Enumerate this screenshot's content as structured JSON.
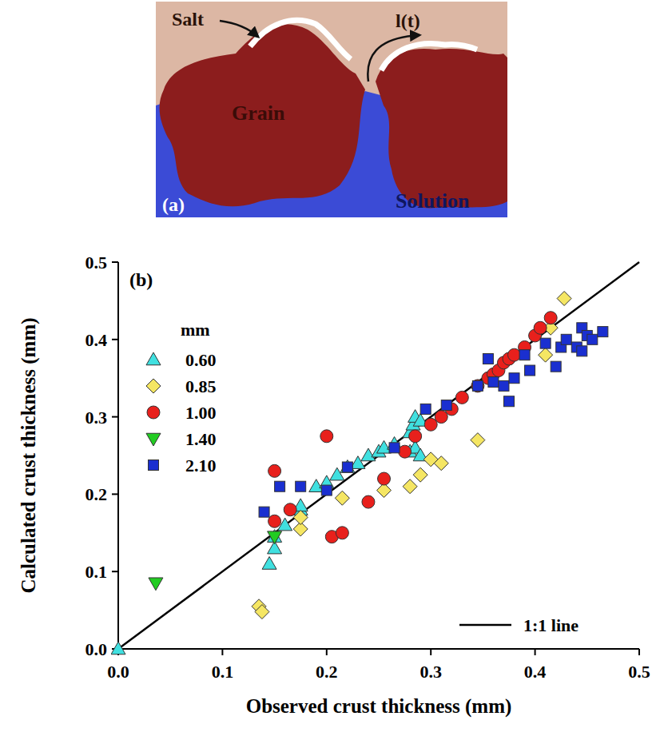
{
  "diagram": {
    "panel": "(a)",
    "labels": {
      "salt": "Salt",
      "length": "l(t)",
      "grain": "Grain",
      "solution": "Solution"
    }
  },
  "chart_data": {
    "type": "scatter",
    "panel": "(b)",
    "x_label": "Observed crust thickness (mm)",
    "y_label": "Calculated crust thickness (mm)",
    "xlim": [
      0,
      0.5
    ],
    "ylim": [
      0,
      0.5
    ],
    "xticks": [
      {
        "value": 0,
        "label": "0.0"
      },
      0.1,
      0.2,
      0.3,
      0.4,
      0.5
    ],
    "yticks": [
      {
        "value": 0,
        "label": "0.0"
      },
      0.1,
      0.2,
      0.3,
      0.4,
      0.5
    ],
    "grid": false,
    "legend": "upper left",
    "legend_title": "mm",
    "series": [
      {
        "name": "0.60",
        "color": "#40e0e0",
        "marker": "triangle-up",
        "x": [
          0,
          0.145,
          0.15,
          0.15,
          0.16,
          0.175,
          0.175,
          0.19,
          0.2,
          0.21,
          0.22,
          0.23,
          0.24,
          0.25,
          0.255,
          0.265,
          0.28,
          0.283,
          0.285,
          0.29,
          0.28,
          0.285,
          0.29
        ],
        "values": [
          0,
          0.11,
          0.13,
          0.145,
          0.16,
          0.18,
          0.185,
          0.21,
          0.215,
          0.225,
          0.235,
          0.24,
          0.25,
          0.255,
          0.26,
          0.265,
          0.28,
          0.29,
          0.3,
          0.295,
          0.255,
          0.26,
          0.25
        ]
      },
      {
        "name": "0.85",
        "color": "#f5e663",
        "marker": "diamond",
        "x": [
          0.135,
          0.138,
          0.175,
          0.175,
          0.215,
          0.255,
          0.28,
          0.29,
          0.3,
          0.31,
          0.345,
          0.41,
          0.415,
          0.428
        ],
        "values": [
          0.055,
          0.048,
          0.155,
          0.17,
          0.195,
          0.205,
          0.21,
          0.225,
          0.245,
          0.24,
          0.27,
          0.38,
          0.415,
          0.453
        ]
      },
      {
        "name": "1.00",
        "color": "#e8201c",
        "marker": "circle",
        "x": [
          0.15,
          0.15,
          0.165,
          0.2,
          0.205,
          0.215,
          0.24,
          0.255,
          0.275,
          0.285,
          0.3,
          0.31,
          0.32,
          0.33,
          0.345,
          0.355,
          0.36,
          0.365,
          0.37,
          0.375,
          0.38,
          0.39,
          0.4,
          0.405,
          0.415
        ],
        "values": [
          0.23,
          0.165,
          0.18,
          0.275,
          0.145,
          0.15,
          0.19,
          0.22,
          0.255,
          0.275,
          0.29,
          0.3,
          0.31,
          0.325,
          0.34,
          0.35,
          0.355,
          0.36,
          0.37,
          0.375,
          0.38,
          0.39,
          0.405,
          0.415,
          0.428
        ]
      },
      {
        "name": "1.40",
        "color": "#22cc22",
        "marker": "triangle-down",
        "x": [
          0.036,
          0.15
        ],
        "values": [
          0.085,
          0.145
        ]
      },
      {
        "name": "2.10",
        "color": "#1a2fd0",
        "marker": "square",
        "x": [
          0.14,
          0.155,
          0.175,
          0.2,
          0.22,
          0.265,
          0.295,
          0.315,
          0.345,
          0.355,
          0.36,
          0.37,
          0.375,
          0.38,
          0.39,
          0.395,
          0.41,
          0.42,
          0.425,
          0.43,
          0.44,
          0.445,
          0.445,
          0.45,
          0.455,
          0.465
        ],
        "values": [
          0.177,
          0.21,
          0.21,
          0.205,
          0.235,
          0.26,
          0.31,
          0.315,
          0.34,
          0.375,
          0.345,
          0.34,
          0.32,
          0.35,
          0.38,
          0.36,
          0.395,
          0.365,
          0.39,
          0.4,
          0.39,
          0.385,
          0.415,
          0.405,
          0.4,
          0.41
        ]
      }
    ],
    "reference_line": {
      "name": "1:1 line",
      "color": "#000000",
      "x": [
        0,
        0.5
      ],
      "y": [
        0,
        0.5
      ]
    }
  }
}
